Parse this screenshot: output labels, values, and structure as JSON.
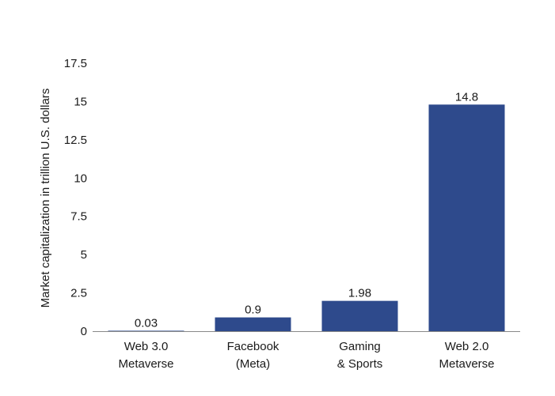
{
  "chart_data": {
    "type": "bar",
    "categories": [
      [
        "Web 3.0",
        "Metaverse"
      ],
      [
        "Facebook",
        "(Meta)"
      ],
      [
        "Gaming",
        "& Sports"
      ],
      [
        "Web 2.0",
        "Metaverse"
      ]
    ],
    "values": [
      0.03,
      0.9,
      1.98,
      14.8
    ],
    "data_labels": [
      "0.03",
      "0.9",
      "1.98",
      "14.8"
    ],
    "ylabel": "Market capitalization in trillion U.S. dollars",
    "ylim": [
      0,
      17.5
    ],
    "yticks": [
      "0",
      "2.5",
      "5",
      "7.5",
      "10",
      "12.5",
      "15",
      "17.5"
    ],
    "grid": false,
    "bar_color": "#2e4a8c"
  }
}
